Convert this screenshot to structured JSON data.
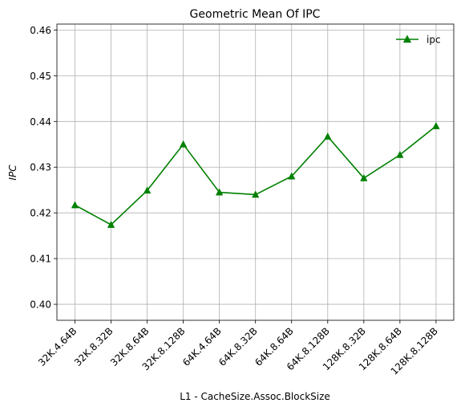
{
  "chart_data": {
    "type": "line",
    "title": "Geometric Mean Of IPC",
    "xlabel": "L1 - CacheSize.Assoc.BlockSize",
    "ylabel": "IPC",
    "categories": [
      "32K.4.64B",
      "32K.8.32B",
      "32K.8.64B",
      "32K.8.128B",
      "64K.4.64B",
      "64K.8.32B",
      "64K.8.64B",
      "64K.8.128B",
      "128K.8.32B",
      "128K.8.64B",
      "128K.8.128B"
    ],
    "series": [
      {
        "name": "ipc",
        "values": [
          0.4217,
          0.4174,
          0.4249,
          0.435,
          0.4245,
          0.424,
          0.428,
          0.4367,
          0.4276,
          0.4327,
          0.439
        ],
        "color": "#008000",
        "marker": "triangle-up"
      }
    ],
    "ylim": [
      0.3965,
      0.4613
    ],
    "yticks": [
      0.4,
      0.41,
      0.42,
      0.43,
      0.44,
      0.45,
      0.46
    ],
    "ytick_labels": [
      "0.40",
      "0.41",
      "0.42",
      "0.43",
      "0.44",
      "0.45",
      "0.46"
    ],
    "grid": true,
    "legend_position": "top-right"
  }
}
